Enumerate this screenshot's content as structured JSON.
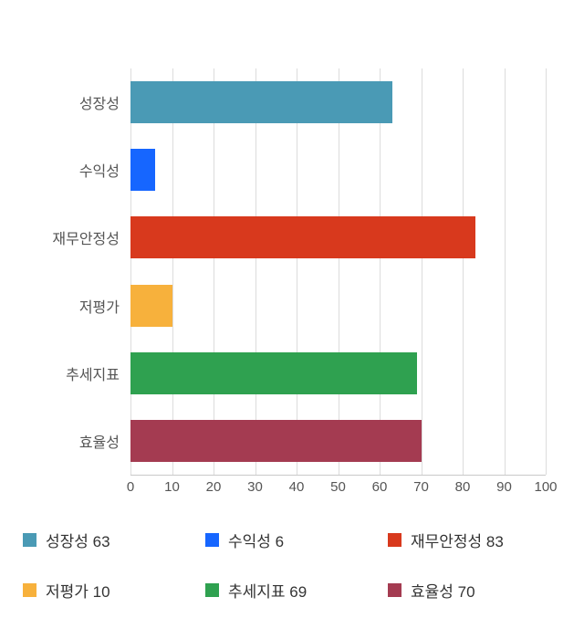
{
  "chart_data": {
    "type": "bar",
    "orientation": "horizontal",
    "title": "",
    "categories": [
      "성장성",
      "수익성",
      "재무안정성",
      "저평가",
      "추세지표",
      "효율성"
    ],
    "values": [
      63,
      6,
      83,
      10,
      69,
      70
    ],
    "colors": [
      "#4a9ab5",
      "#1666ff",
      "#d8391d",
      "#f7b13c",
      "#2fa150",
      "#a43b51"
    ],
    "xlim": [
      0,
      100
    ],
    "xticks": [
      0,
      10,
      20,
      30,
      40,
      50,
      60,
      70,
      80,
      90,
      100
    ],
    "grid": true,
    "legend_position": "bottom",
    "legend_items": [
      {
        "label": "성장성 63",
        "color": "#4a9ab5"
      },
      {
        "label": "수익성 6",
        "color": "#1666ff"
      },
      {
        "label": "재무안정성 83",
        "color": "#d8391d"
      },
      {
        "label": "저평가 10",
        "color": "#f7b13c"
      },
      {
        "label": "추세지표 69",
        "color": "#2fa150"
      },
      {
        "label": "효율성 70",
        "color": "#a43b51"
      }
    ]
  }
}
